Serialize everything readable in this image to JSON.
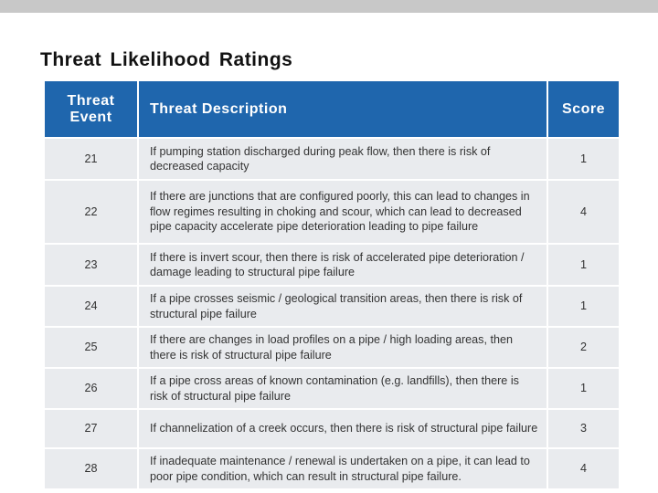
{
  "title": "Threat Likelihood Ratings",
  "table": {
    "header": [
      "Threat Event",
      "Threat Description",
      "Score"
    ],
    "rows": [
      [
        21,
        "If pumping station discharged during peak flow, then there is risk of decreased capacity",
        1
      ],
      [
        22,
        "If there are junctions that are configured poorly, this can lead to changes in flow regimes resulting in choking and scour, which can lead to decreased pipe capacity accelerate pipe deterioration leading to pipe failure",
        4
      ],
      [
        23,
        "If there is invert scour, then there is risk of accelerated pipe deterioration / damage leading to structural pipe failure",
        1
      ],
      [
        24,
        "If a pipe crosses seismic / geological transition areas, then there is risk of structural pipe failure",
        1
      ],
      [
        25,
        "If there are changes in load profiles on a pipe / high loading areas, then there is risk of structural pipe failure",
        2
      ],
      [
        26,
        "If a pipe cross areas of known contamination (e.g. landfills), then there is risk of structural pipe failure",
        1
      ],
      [
        27,
        "If channelization of a creek occurs, then there is risk of structural pipe failure",
        3
      ],
      [
        28,
        "If inadequate maintenance / renewal is undertaken on a pipe, it can lead to poor pipe condition, which can result in structural pipe failure.",
        4
      ]
    ]
  }
}
